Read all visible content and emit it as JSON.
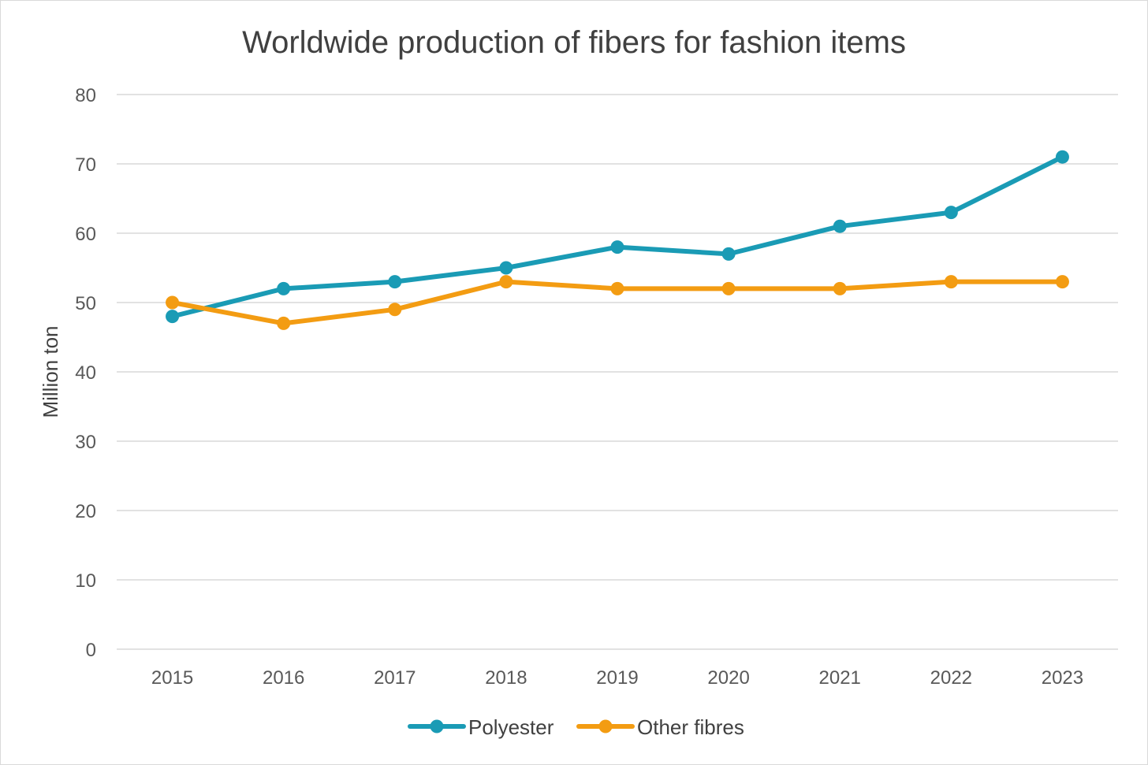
{
  "chart_data": {
    "type": "line",
    "title": "Worldwide production of fibers for fashion items",
    "xlabel": "",
    "ylabel": "Million ton",
    "categories": [
      "2015",
      "2016",
      "2017",
      "2018",
      "2019",
      "2020",
      "2021",
      "2022",
      "2023"
    ],
    "ylim": [
      0,
      80
    ],
    "yticks": [
      "0",
      "10",
      "20",
      "30",
      "40",
      "50",
      "60",
      "70",
      "80"
    ],
    "grid": "horizontal",
    "legend_position": "bottom",
    "series": [
      {
        "name": "Polyester",
        "color": "#1a9bb5",
        "values": [
          48,
          52,
          53,
          55,
          58,
          57,
          61,
          63,
          71
        ]
      },
      {
        "name": "Other fibres",
        "color": "#f39c12",
        "values": [
          50,
          47,
          49,
          53,
          52,
          52,
          52,
          53,
          53
        ]
      }
    ]
  }
}
